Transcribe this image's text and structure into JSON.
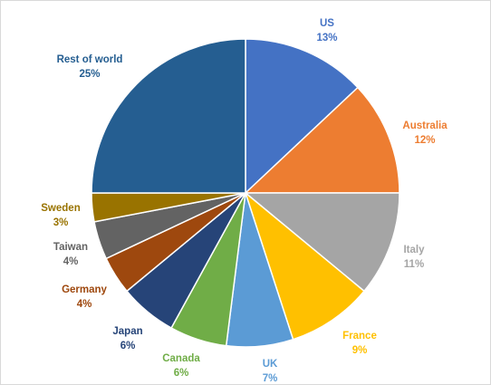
{
  "chart_data": {
    "type": "pie",
    "slices": [
      {
        "label": "US",
        "value": 13,
        "value_text": "13%",
        "color": "#4472C4"
      },
      {
        "label": "Australia",
        "value": 12,
        "value_text": "12%",
        "color": "#ED7D31"
      },
      {
        "label": "Italy",
        "value": 11,
        "value_text": "11%",
        "color": "#A5A5A5"
      },
      {
        "label": "France",
        "value": 9,
        "value_text": "9%",
        "color": "#FFC000"
      },
      {
        "label": "UK",
        "value": 7,
        "value_text": "7%",
        "color": "#5B9BD5"
      },
      {
        "label": "Canada",
        "value": 6,
        "value_text": "6%",
        "color": "#70AD47"
      },
      {
        "label": "Japan",
        "value": 6,
        "value_text": "6%",
        "color": "#264478"
      },
      {
        "label": "Germany",
        "value": 4,
        "value_text": "4%",
        "color": "#9E480E"
      },
      {
        "label": "Taiwan",
        "value": 4,
        "value_text": "4%",
        "color": "#636363"
      },
      {
        "label": "Sweden",
        "value": 3,
        "value_text": "3%",
        "color": "#997300"
      },
      {
        "label": "Rest of world",
        "value": 25,
        "value_text": "25%",
        "color": "#255E91"
      }
    ],
    "legend": "none",
    "data_labels": "outside"
  }
}
